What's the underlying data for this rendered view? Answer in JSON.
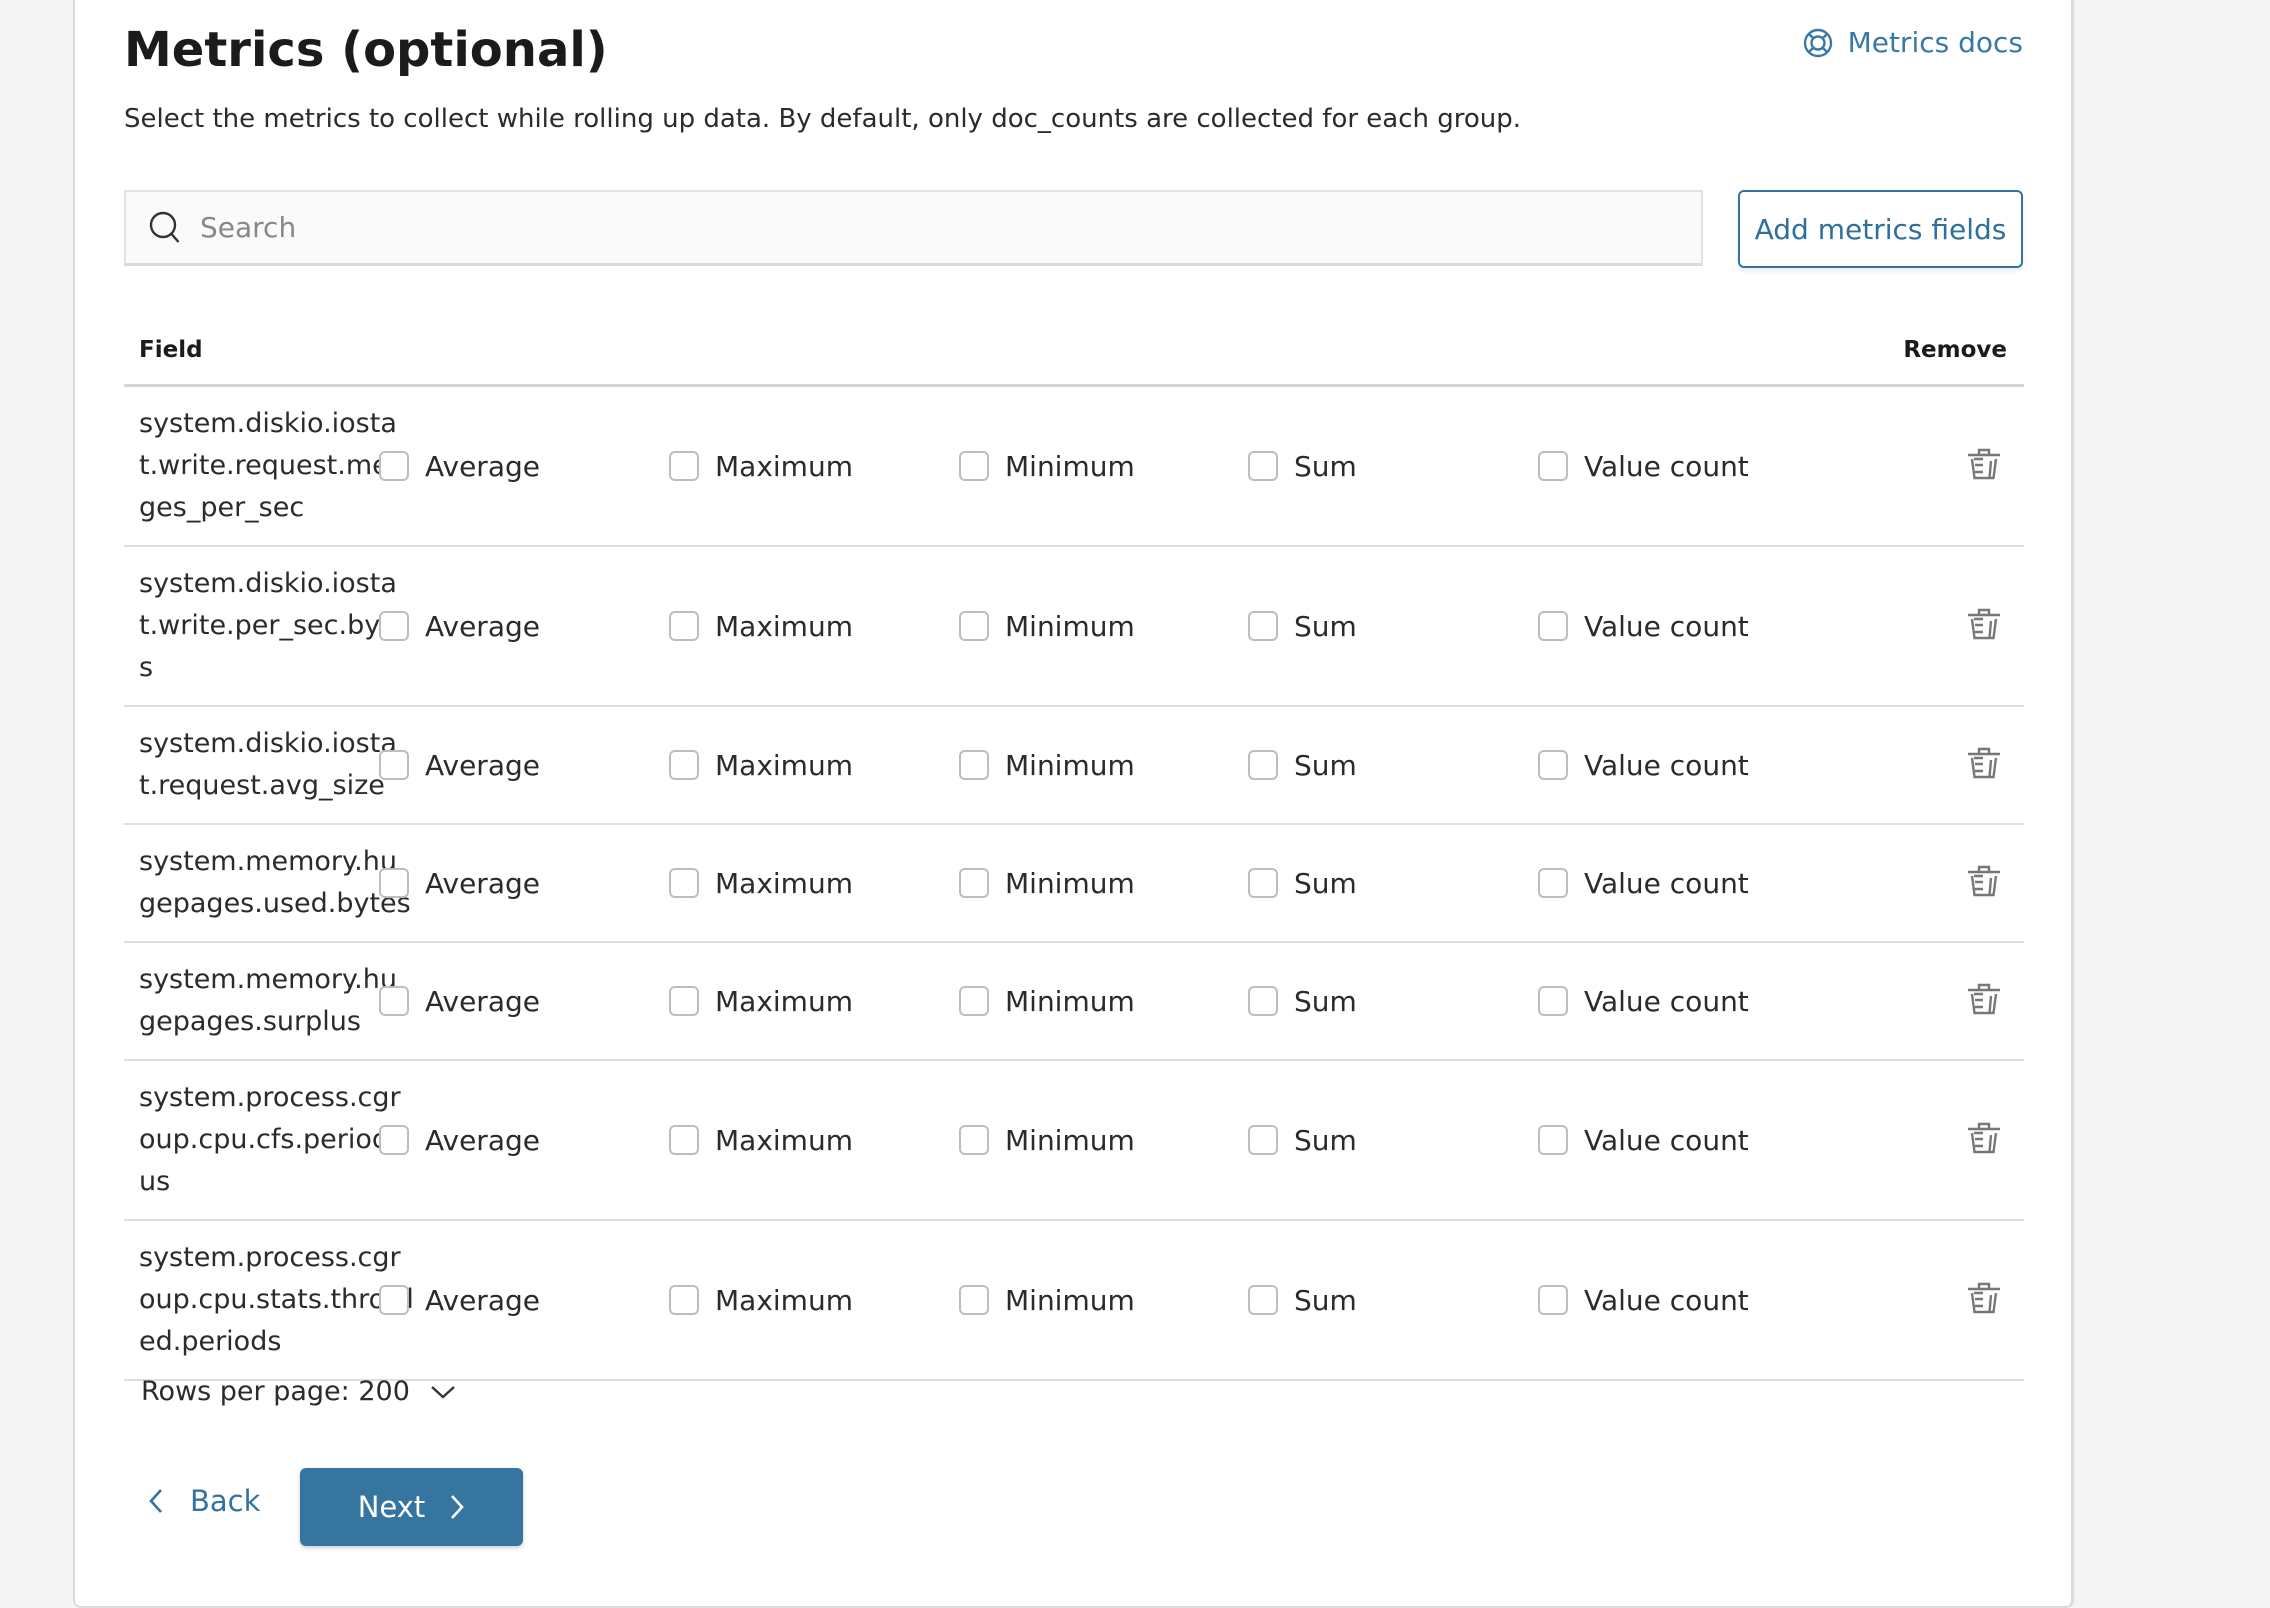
{
  "header": {
    "title": "Metrics (optional)",
    "docs_link": "Metrics docs",
    "docs_icon": "lifebuoy-icon",
    "description": "Select the metrics to collect while rolling up data. By default, only doc_counts are collected for each group."
  },
  "search": {
    "placeholder": "Search",
    "value": ""
  },
  "add_button": "Add metrics fields",
  "table": {
    "columns": {
      "field": "Field",
      "remove": "Remove"
    },
    "metric_options": [
      "Average",
      "Maximum",
      "Minimum",
      "Sum",
      "Value count"
    ],
    "rows": [
      {
        "field": "system.diskio.iostat.write.request.merges_per_sec",
        "checked": [
          false,
          false,
          false,
          false,
          false
        ]
      },
      {
        "field": "system.diskio.iostat.write.per_sec.bytes",
        "checked": [
          false,
          false,
          false,
          false,
          false
        ]
      },
      {
        "field": "system.diskio.iostat.request.avg_size",
        "checked": [
          false,
          false,
          false,
          false,
          false
        ]
      },
      {
        "field": "system.memory.hugepages.used.bytes",
        "checked": [
          false,
          false,
          false,
          false,
          false
        ]
      },
      {
        "field": "system.memory.hugepages.surplus",
        "checked": [
          false,
          false,
          false,
          false,
          false
        ]
      },
      {
        "field": "system.process.cgroup.cpu.cfs.period.us",
        "checked": [
          false,
          false,
          false,
          false,
          false
        ]
      },
      {
        "field": "system.process.cgroup.cpu.stats.throttled.periods",
        "checked": [
          false,
          false,
          false,
          false,
          false
        ]
      }
    ]
  },
  "pagination": {
    "rows_per_page": "Rows per page: 200"
  },
  "nav": {
    "back": "Back",
    "next": "Next"
  },
  "colors": {
    "accent": "#3373a0",
    "primary_button": "#35759f"
  }
}
